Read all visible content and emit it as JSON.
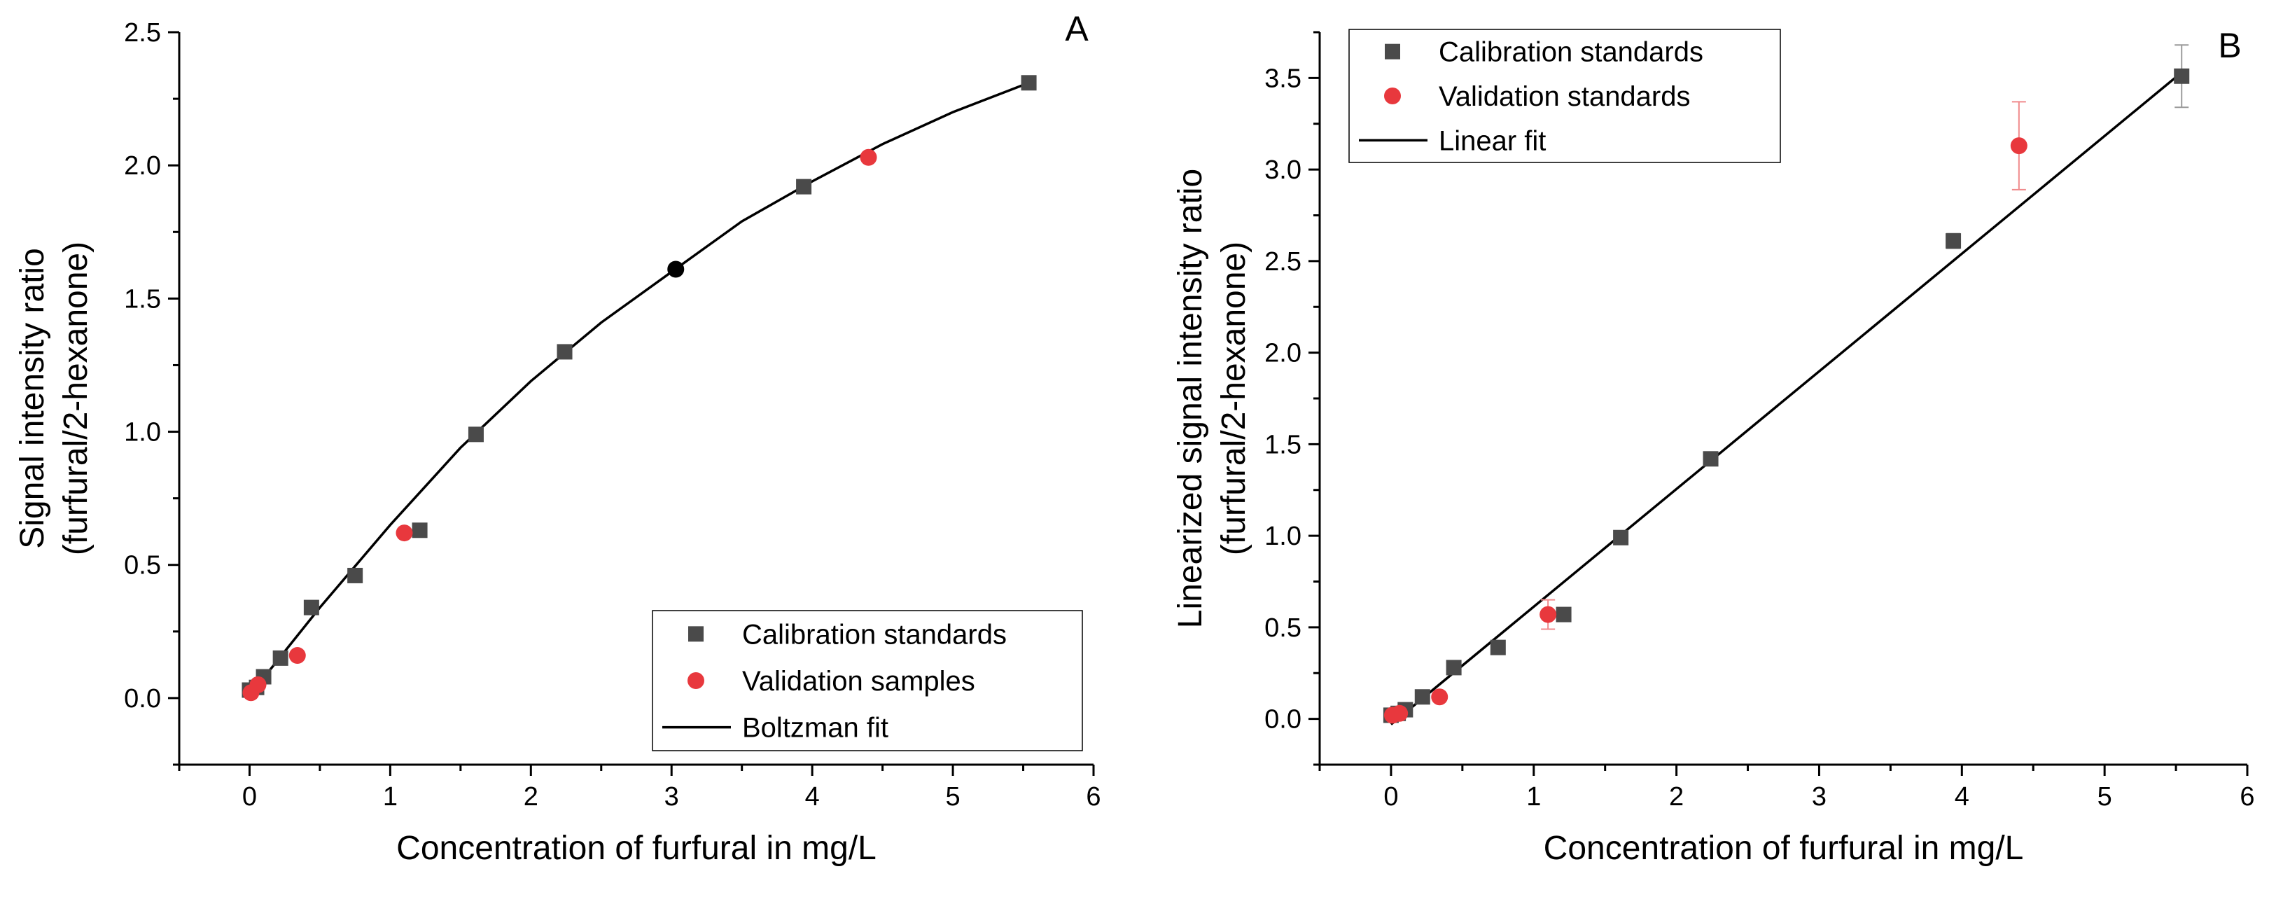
{
  "chart_data": [
    {
      "panel": "A",
      "type": "scatter",
      "panel_label": "A",
      "title": "",
      "xlabel": "Concentration of furfural in mg/L",
      "ylabel": [
        "Signal intensity ratio",
        "(furfural/2-hexanone)"
      ],
      "xlim": [
        -0.5,
        6
      ],
      "ylim": [
        -0.25,
        2.5
      ],
      "xticks": [
        0,
        1,
        2,
        3,
        4,
        5,
        6
      ],
      "yticks": [
        0.0,
        0.5,
        1.0,
        1.5,
        2.0,
        2.5
      ],
      "xtick_labels": [
        "0",
        "1",
        "2",
        "3",
        "4",
        "5",
        "6"
      ],
      "ytick_labels": [
        "0.0",
        "0.5",
        "1.0",
        "1.5",
        "2.0",
        "2.5"
      ],
      "legend_position": "bottom-right",
      "legend": [
        "Calibration standards",
        "Validation samples",
        "Boltzman fit"
      ],
      "series": [
        {
          "name": "Calibration standards",
          "marker": "square",
          "color": "#4a4a4a",
          "x": [
            0.0,
            0.05,
            0.1,
            0.22,
            0.44,
            0.75,
            1.21,
            1.61,
            2.24,
            3.94,
            5.54
          ],
          "y": [
            0.03,
            0.04,
            0.08,
            0.15,
            0.34,
            0.46,
            0.63,
            0.99,
            1.3,
            1.92,
            2.31
          ]
        },
        {
          "name": "Validation samples",
          "marker": "circle",
          "color": "#e8383d",
          "x": [
            0.01,
            0.06,
            0.34,
            1.1,
            4.4
          ],
          "y": [
            0.02,
            0.05,
            0.16,
            0.62,
            2.03
          ]
        },
        {
          "name": "Unlabeled point",
          "marker": "circle",
          "color": "#000000",
          "x": [
            3.03
          ],
          "y": [
            1.61
          ]
        },
        {
          "name": "Boltzman fit",
          "kind": "line",
          "color": "#000000",
          "x": [
            0.0,
            0.5,
            1.0,
            1.5,
            2.0,
            2.5,
            3.0,
            3.5,
            4.0,
            4.5,
            5.0,
            5.54
          ],
          "y": [
            0.01,
            0.34,
            0.65,
            0.94,
            1.19,
            1.41,
            1.6,
            1.79,
            1.94,
            2.08,
            2.2,
            2.31
          ]
        }
      ]
    },
    {
      "panel": "B",
      "type": "scatter",
      "panel_label": "B",
      "title": "",
      "xlabel": "Concentration of furfural in mg/L",
      "ylabel": [
        "Linearized signal intensity ratio",
        "(furfural/2-hexanone)"
      ],
      "xlim": [
        -0.5,
        6
      ],
      "ylim": [
        -0.25,
        3.75
      ],
      "xticks": [
        0,
        1,
        2,
        3,
        4,
        5,
        6
      ],
      "yticks": [
        0.0,
        0.5,
        1.0,
        1.5,
        2.0,
        2.5,
        3.0,
        3.5
      ],
      "xtick_labels": [
        "0",
        "1",
        "2",
        "3",
        "4",
        "5",
        "6"
      ],
      "ytick_labels": [
        "0.0",
        "0.5",
        "1.0",
        "1.5",
        "2.0",
        "2.5",
        "3.0",
        "3.5"
      ],
      "legend_position": "top-left",
      "legend": [
        "Calibration standards",
        "Validation standards",
        "Linear fit"
      ],
      "series": [
        {
          "name": "Calibration standards",
          "marker": "square",
          "color": "#4a4a4a",
          "x": [
            0.0,
            0.05,
            0.1,
            0.22,
            0.44,
            0.75,
            1.21,
            1.61,
            2.24,
            3.94,
            5.54
          ],
          "y": [
            0.02,
            0.03,
            0.05,
            0.12,
            0.28,
            0.39,
            0.57,
            0.99,
            1.42,
            2.61,
            3.51
          ],
          "yerr": [
            0.01,
            0.01,
            0.01,
            0.01,
            0.01,
            0.01,
            0.02,
            0.02,
            0.02,
            0.04,
            0.17
          ]
        },
        {
          "name": "Validation standards",
          "marker": "circle",
          "color": "#e8383d",
          "x": [
            0.01,
            0.06,
            0.34,
            1.1,
            4.4
          ],
          "y": [
            0.02,
            0.03,
            0.12,
            0.57,
            3.13
          ],
          "yerr": [
            0.01,
            0.01,
            0.02,
            0.08,
            0.24
          ]
        },
        {
          "name": "Linear fit",
          "kind": "line",
          "color": "#000000",
          "x": [
            0.0,
            5.54
          ],
          "y": [
            -0.03,
            3.53
          ]
        }
      ]
    }
  ]
}
